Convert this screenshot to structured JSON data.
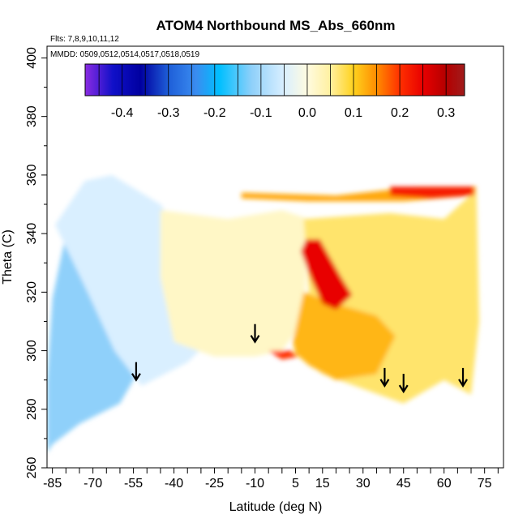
{
  "chart_data": {
    "type": "heatmap",
    "title": "ATOM4 Northbound MS_Abs_660nm",
    "subtitle_flights": "Flts: 7,8,9,10,11,12",
    "subtitle_dates": "MMDD: 0509,0512,0514,0517,0518,0519",
    "xlabel": "Latitude (deg N)",
    "ylabel": "Theta (C)",
    "xlim": [
      -87,
      82
    ],
    "ylim": [
      260,
      404
    ],
    "x_ticks": [
      -85,
      -70,
      -55,
      -40,
      -25,
      -10,
      5,
      15,
      30,
      45,
      60,
      75
    ],
    "y_ticks": [
      260,
      280,
      300,
      320,
      340,
      360,
      380,
      400
    ],
    "colorbar": {
      "range": [
        -0.48,
        0.34
      ],
      "ticks": [
        -0.4,
        -0.3,
        -0.2,
        -0.1,
        0.0,
        0.1,
        0.2,
        0.3
      ],
      "tick_labels": [
        "-0.4",
        "-0.3",
        "-0.2",
        "-0.1",
        "0.0",
        "0.1",
        "0.2",
        "0.3"
      ],
      "stops": [
        {
          "v": -0.48,
          "c": "#8a2be2"
        },
        {
          "v": -0.42,
          "c": "#1010c8"
        },
        {
          "v": -0.36,
          "c": "#0000a0"
        },
        {
          "v": -0.3,
          "c": "#1e5ed8"
        },
        {
          "v": -0.24,
          "c": "#3a8cf0"
        },
        {
          "v": -0.19,
          "c": "#00bfff"
        },
        {
          "v": -0.12,
          "c": "#8fd0fa"
        },
        {
          "v": -0.05,
          "c": "#d9efff"
        },
        {
          "v": 0.0,
          "c": "#fffbe0"
        },
        {
          "v": 0.05,
          "c": "#fff0a0"
        },
        {
          "v": 0.1,
          "c": "#ffd21e"
        },
        {
          "v": 0.15,
          "c": "#ff8c00"
        },
        {
          "v": 0.2,
          "c": "#ff3000"
        },
        {
          "v": 0.25,
          "c": "#e80000"
        },
        {
          "v": 0.3,
          "c": "#b40000"
        },
        {
          "v": 0.34,
          "c": "#a01c1c"
        }
      ]
    },
    "field_regions": [
      {
        "name": "southern-blue-region",
        "value": -0.12,
        "poly": [
          [
            -87,
            265
          ],
          [
            -87,
            290
          ],
          [
            -85,
            318
          ],
          [
            -80,
            340
          ],
          [
            -70,
            345
          ],
          [
            -57,
            338
          ],
          [
            -45,
            328
          ],
          [
            -50,
            310
          ],
          [
            -55,
            290
          ],
          [
            -60,
            282
          ],
          [
            -75,
            275
          ],
          [
            -85,
            268
          ]
        ]
      },
      {
        "name": "southern-light-blue-region",
        "value": -0.05,
        "poly": [
          [
            -84,
            343
          ],
          [
            -73,
            358
          ],
          [
            -63,
            360
          ],
          [
            -45,
            350
          ],
          [
            -30,
            330
          ],
          [
            -25,
            305
          ],
          [
            -35,
            296
          ],
          [
            -52,
            288
          ],
          [
            -62,
            300
          ],
          [
            -72,
            320
          ]
        ]
      },
      {
        "name": "tropical-neutral-region",
        "value": 0.02,
        "poly": [
          [
            -45,
            348
          ],
          [
            -20,
            345
          ],
          [
            0,
            348
          ],
          [
            10,
            345
          ],
          [
            8,
            310
          ],
          [
            0,
            300
          ],
          [
            -10,
            298
          ],
          [
            -25,
            298
          ],
          [
            -40,
            303
          ],
          [
            -45,
            325
          ]
        ]
      },
      {
        "name": "northern-yellow-band",
        "value": 0.07,
        "poly": [
          [
            8,
            345
          ],
          [
            40,
            347
          ],
          [
            60,
            345
          ],
          [
            72,
            355
          ],
          [
            73,
            310
          ],
          [
            70,
            285
          ],
          [
            60,
            290
          ],
          [
            45,
            282
          ],
          [
            30,
            287
          ],
          [
            15,
            292
          ],
          [
            5,
            299
          ],
          [
            10,
            320
          ]
        ]
      },
      {
        "name": "northern-orange-region",
        "value": 0.12,
        "poly": [
          [
            8,
            320
          ],
          [
            20,
            316
          ],
          [
            35,
            312
          ],
          [
            42,
            305
          ],
          [
            35,
            292
          ],
          [
            20,
            290
          ],
          [
            10,
            295
          ],
          [
            5,
            299
          ],
          [
            4,
            303
          ]
        ]
      },
      {
        "name": "upper-orange-streak",
        "value": 0.13,
        "poly": [
          [
            -15,
            354
          ],
          [
            20,
            353
          ],
          [
            50,
            356
          ],
          [
            72,
            356
          ],
          [
            71,
            353
          ],
          [
            45,
            351
          ],
          [
            10,
            351
          ],
          [
            -15,
            352
          ]
        ]
      },
      {
        "name": "tropical-red-core",
        "value": 0.25,
        "poly": [
          [
            9,
            338
          ],
          [
            14,
            338
          ],
          [
            22,
            325
          ],
          [
            26,
            319
          ],
          [
            20,
            314
          ],
          [
            15,
            316
          ],
          [
            11,
            324
          ],
          [
            7,
            334
          ]
        ]
      },
      {
        "name": "upper-red-streak",
        "value": 0.22,
        "poly": [
          [
            40,
            356
          ],
          [
            71,
            356
          ],
          [
            71,
            353
          ],
          [
            55,
            352
          ],
          [
            40,
            353
          ]
        ]
      },
      {
        "name": "lower-red-patch",
        "value": 0.2,
        "poly": [
          [
            -5,
            300
          ],
          [
            3,
            300
          ],
          [
            6,
            298
          ],
          [
            0,
            297
          ]
        ]
      }
    ],
    "arrows": [
      {
        "latitude": -54,
        "theta": 290
      },
      {
        "latitude": -10,
        "theta": 303
      },
      {
        "latitude": 38,
        "theta": 288
      },
      {
        "latitude": 45,
        "theta": 286
      },
      {
        "latitude": 67,
        "theta": 288
      }
    ]
  }
}
